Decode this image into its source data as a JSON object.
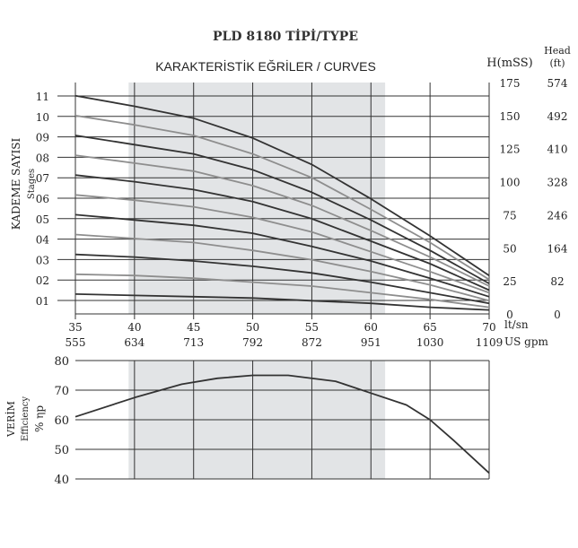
{
  "header": {
    "title": "PLD 8180 TİPİ/TYPE",
    "subtitle": "KARAKTERİSTİK EĞRİLER / CURVES",
    "right_col1": "H(mSS)",
    "right_col2_line1": "Head",
    "right_col2_line2": "(ft)"
  },
  "left_labels": {
    "top_main": "KADEME SAYISI",
    "top_sub": "Stages",
    "bottom_main": "VERİM",
    "bottom_sub": "Efficiency",
    "bottom_unit": "% ηp"
  },
  "x_axis": {
    "unit1": "lt/sn",
    "unit2": "US gpm"
  },
  "colors": {
    "band": "#e2e4e6",
    "grid": "#333333",
    "curve_dark": "#333333",
    "curve_mid": "#6b6b6b",
    "curve_light": "#8e8e8e"
  },
  "chart_data": [
    {
      "type": "line",
      "title": "KARAKTERİSTİK EĞRİLER / CURVES",
      "xlabel": "lt/sn",
      "xlabel2": "US gpm",
      "ylabel": "KADEME SAYISI",
      "ylabel_sub": "Stages",
      "x_ticks": [
        35,
        40,
        45,
        50,
        55,
        60,
        65,
        70
      ],
      "x_ticks_gpm": [
        "555",
        "634",
        "713",
        "792",
        "872",
        "951",
        "1030",
        "1109"
      ],
      "xlim": [
        35,
        70
      ],
      "ylim": [
        0,
        175
      ],
      "y_ticks_mss": [
        "175",
        "150",
        "125",
        "100",
        "75",
        "50",
        "25",
        "0"
      ],
      "y_ticks_ft": [
        "574",
        "492",
        "410",
        "328",
        "246",
        "164",
        "82",
        "0"
      ],
      "stage_labels": [
        "11",
        "10",
        "09",
        "08",
        "07",
        "06",
        "05",
        "04",
        "03",
        "02",
        "01"
      ],
      "shaded_range": [
        39.5,
        61.2
      ],
      "grid": true,
      "series": [
        {
          "name": "11",
          "x": [
            35,
            40,
            45,
            50,
            55,
            60,
            65,
            70
          ],
          "y": [
            165,
            157,
            148,
            133,
            113,
            87,
            59,
            29
          ]
        },
        {
          "name": "10",
          "x": [
            35,
            40,
            45,
            50,
            55,
            60,
            65,
            70
          ],
          "y": [
            150,
            143,
            135,
            121,
            103,
            79,
            54,
            26
          ]
        },
        {
          "name": "09",
          "x": [
            35,
            40,
            45,
            50,
            55,
            60,
            65,
            70
          ],
          "y": [
            135,
            128,
            121,
            109,
            92,
            71,
            48,
            23
          ]
        },
        {
          "name": "08",
          "x": [
            35,
            40,
            45,
            50,
            55,
            60,
            65,
            70
          ],
          "y": [
            120,
            114,
            108,
            97,
            82,
            63,
            43,
            21
          ]
        },
        {
          "name": "07",
          "x": [
            35,
            40,
            45,
            50,
            55,
            60,
            65,
            70
          ],
          "y": [
            105,
            100,
            94,
            85,
            72,
            55,
            38,
            18
          ]
        },
        {
          "name": "06",
          "x": [
            35,
            40,
            45,
            50,
            55,
            60,
            65,
            70
          ],
          "y": [
            90,
            86,
            81,
            73,
            62,
            47,
            32,
            16
          ]
        },
        {
          "name": "05",
          "x": [
            35,
            40,
            45,
            50,
            55,
            60,
            65,
            70
          ],
          "y": [
            75,
            71,
            67,
            61,
            51,
            40,
            27,
            13
          ]
        },
        {
          "name": "04",
          "x": [
            35,
            40,
            45,
            50,
            55,
            60,
            65,
            70
          ],
          "y": [
            60,
            57,
            54,
            48,
            41,
            32,
            22,
            10
          ]
        },
        {
          "name": "03",
          "x": [
            35,
            40,
            45,
            50,
            55,
            60,
            65,
            70
          ],
          "y": [
            45,
            43,
            40,
            36,
            31,
            24,
            16,
            8
          ]
        },
        {
          "name": "02",
          "x": [
            35,
            40,
            45,
            50,
            55,
            60,
            65,
            70
          ],
          "y": [
            30,
            29,
            27,
            24,
            21,
            16,
            11,
            5
          ]
        },
        {
          "name": "01",
          "x": [
            35,
            40,
            45,
            50,
            55,
            60,
            65,
            70
          ],
          "y": [
            15,
            14,
            13,
            12,
            10,
            8,
            5,
            3
          ]
        }
      ]
    },
    {
      "type": "line",
      "ylabel": "VERİM",
      "ylabel_sub": "Efficiency",
      "ylabel_unit": "% ηp",
      "xlim": [
        35,
        70
      ],
      "ylim": [
        40,
        80
      ],
      "y_ticks": [
        "80",
        "70",
        "60",
        "50",
        "40"
      ],
      "shaded_range": [
        39.5,
        61.2
      ],
      "grid": true,
      "series": [
        {
          "x": [
            35,
            40,
            44,
            47,
            50,
            53,
            57,
            60,
            63,
            65,
            67,
            70
          ],
          "y": [
            61,
            67.5,
            72,
            74,
            75,
            75,
            73,
            69,
            65,
            60,
            53,
            42
          ]
        }
      ]
    }
  ]
}
